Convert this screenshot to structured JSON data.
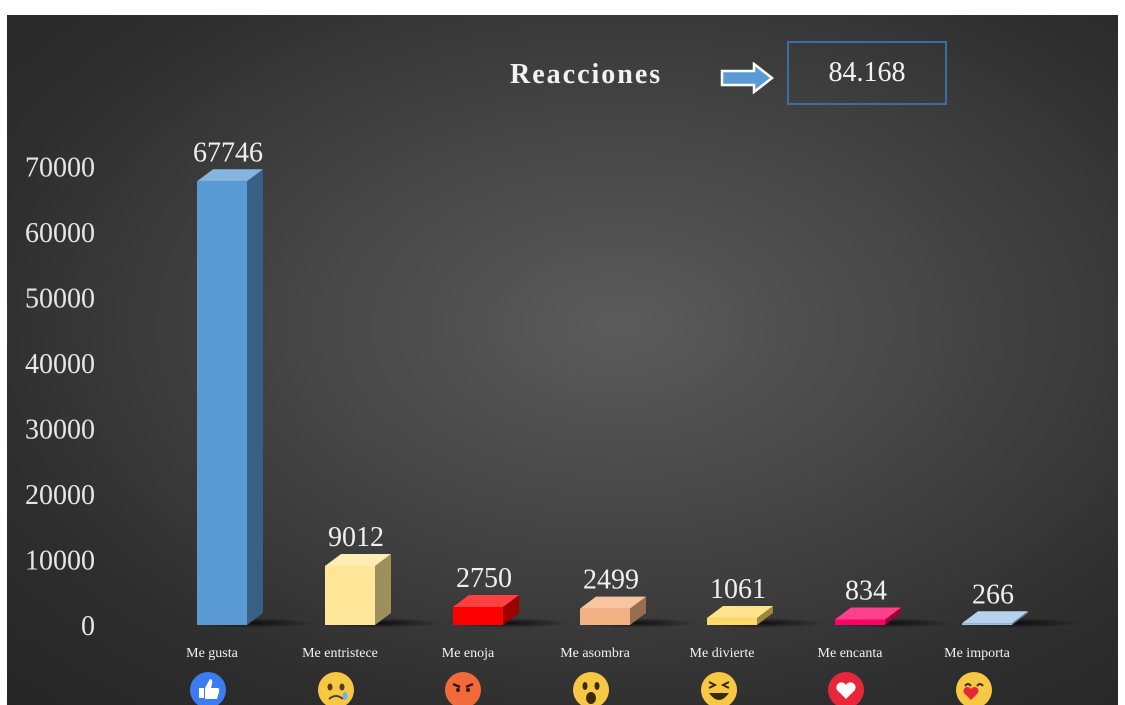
{
  "header": {
    "title": "Reacciones",
    "total": "84.168"
  },
  "colors": {
    "background": "#3d3d3d",
    "text": "#f2f2f2",
    "arrow": "#5b9bd5",
    "box_border": "#3a6ea5"
  },
  "chart_data": {
    "type": "bar",
    "style": "3d-column",
    "categories": [
      "Me gusta",
      "Me entristece",
      "Me enoja",
      "Me asombra",
      "Me divierte",
      "Me encanta",
      "Me importa"
    ],
    "values": [
      67746,
      9012,
      2750,
      2499,
      1061,
      834,
      266
    ],
    "bar_colors": [
      "#5b9bd5",
      "#ffe699",
      "#ff0000",
      "#f4b183",
      "#ffd966",
      "#ff0066",
      "#9dc3e6"
    ],
    "category_icons": [
      "like-icon",
      "sad-icon",
      "angry-icon",
      "wow-icon",
      "haha-icon",
      "love-icon",
      "care-icon"
    ],
    "yticks": [
      "0",
      "10000",
      "20000",
      "30000",
      "40000",
      "50000",
      "60000",
      "70000"
    ],
    "ylim": [
      0,
      70000
    ],
    "grid": false,
    "legend": "none",
    "data_labels": true
  }
}
